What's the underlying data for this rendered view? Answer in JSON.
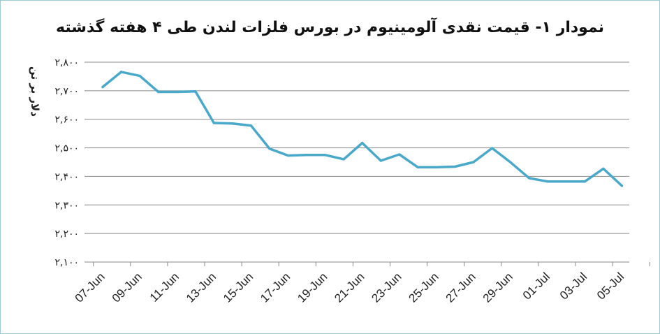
{
  "chart_data": {
    "type": "line",
    "title": "نمودار ۱- قیمت نقدی آلومینیوم در بورس فلزات لندن طی ۴ هفته گذشته",
    "ylabel": "دلار بر تن",
    "xlabel": "",
    "ylim": [
      2100,
      2800
    ],
    "yticks": [
      2100,
      2200,
      2300,
      2400,
      2500,
      2600,
      2700,
      2800
    ],
    "ytick_labels": [
      "۲,۱۰۰",
      "۲,۲۰۰",
      "۲,۳۰۰",
      "۲,۴۰۰",
      "۲,۵۰۰",
      "۲,۶۰۰",
      "۲,۷۰۰",
      "۲,۸۰۰"
    ],
    "xtick_labels": [
      "07-Jun",
      "09-Jun",
      "11-Jun",
      "13-Jun",
      "15-Jun",
      "17-Jun",
      "19-Jun",
      "21-Jun",
      "23-Jun",
      "25-Jun",
      "27-Jun",
      "29-Jun",
      "01-Jul",
      "03-Jul",
      "05-Jul"
    ],
    "grid": true,
    "color": "#4aa8c8",
    "series": [
      {
        "x": [
          "07-Jun",
          "08-Jun",
          "09-Jun",
          "10-Jun",
          "11-Jun",
          "12-Jun",
          "13-Jun",
          "14-Jun",
          "15-Jun",
          "16-Jun",
          "17-Jun",
          "18-Jun",
          "19-Jun",
          "20-Jun",
          "21-Jun",
          "22-Jun",
          "23-Jun",
          "24-Jun",
          "25-Jun",
          "26-Jun",
          "27-Jun",
          "28-Jun",
          "29-Jun",
          "30-Jun",
          "01-Jul",
          "02-Jul",
          "03-Jul",
          "04-Jul",
          "05-Jul"
        ],
        "values": [
          2713,
          2766,
          2752,
          2696,
          2696,
          2698,
          2587,
          2585,
          2578,
          2497,
          2473,
          2475,
          2475,
          2460,
          2517,
          2455,
          2477,
          2432,
          2432,
          2434,
          2450,
          2499,
          2449,
          2394,
          2382,
          2382,
          2382,
          2427,
          2367
        ]
      }
    ]
  }
}
